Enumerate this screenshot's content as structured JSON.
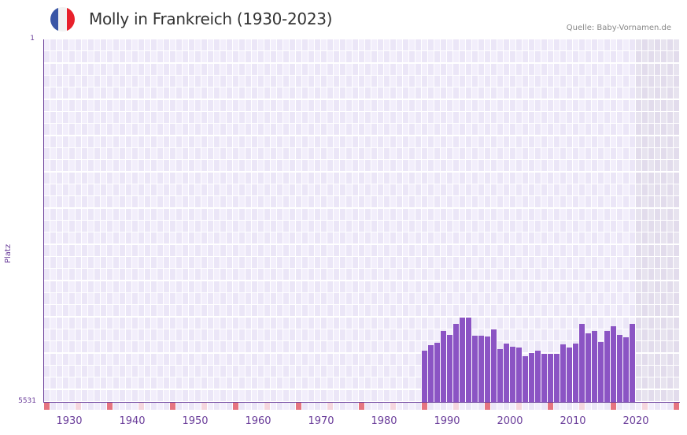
{
  "header": {
    "title": "Molly in Frankreich (1930-2023)",
    "source": "Quelle: Baby-Vornamen.de",
    "flag_colors": [
      "#3a56a6",
      "#f2f2f2",
      "#e8212b"
    ]
  },
  "axis": {
    "ylabel": "Platz",
    "ytick_top": "1",
    "ytick_bottom": "5531",
    "xticks": [
      "1930",
      "1940",
      "1950",
      "1960",
      "1970",
      "1980",
      "1990",
      "2000",
      "2010",
      "2020"
    ]
  },
  "colors": {
    "bar": "#8b54c4",
    "axis": "#6a3d9a",
    "marker_strong": "#e57480",
    "marker_light": "#f5d6de",
    "grid_a": "#f2eefb",
    "grid_b": "#ebe6f7",
    "future_a": "#e7e3ef",
    "future_b": "#e2dcec"
  },
  "chart_data": {
    "type": "bar",
    "title": "Molly in Frankreich (1930-2023)",
    "xlabel": "",
    "ylabel": "Platz",
    "ylim": [
      5531,
      1
    ],
    "y_inverted": true,
    "x_range": [
      1928,
      2028
    ],
    "grid": true,
    "legend": null,
    "categories": [
      1988,
      1989,
      1990,
      1991,
      1992,
      1993,
      1994,
      1995,
      1996,
      1997,
      1998,
      1999,
      2000,
      2001,
      2002,
      2003,
      2004,
      2005,
      2006,
      2007,
      2008,
      2009,
      2010,
      2011,
      2012,
      2013,
      2014,
      2015,
      2016,
      2017,
      2018,
      2019,
      2020,
      2021
    ],
    "values": [
      4749,
      4665,
      4629,
      4449,
      4509,
      4341,
      4245,
      4245,
      4521,
      4521,
      4533,
      4425,
      4725,
      4641,
      4689,
      4701,
      4833,
      4785,
      4749,
      4797,
      4797,
      4797,
      4653,
      4701,
      4641,
      4341,
      4485,
      4449,
      4617,
      4449,
      4377,
      4509,
      4545,
      4341
    ]
  }
}
